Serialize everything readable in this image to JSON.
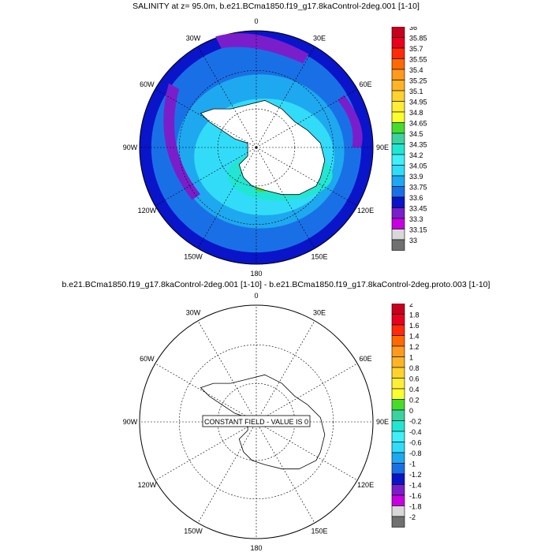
{
  "panels": [
    {
      "title": "SALINITY at z=  95.0m, b.e21.BCma1850.f19_g17.8kaControl-2deg.001 [1-10]",
      "lon_labels": [
        "0",
        "30E",
        "60E",
        "90E",
        "120E",
        "150E",
        "180",
        "150W",
        "120W",
        "90W",
        "60W",
        "30W"
      ],
      "colorbar": {
        "labels": [
          "36",
          "35.85",
          "35.7",
          "35.55",
          "35.4",
          "35.25",
          "35.1",
          "34.95",
          "34.8",
          "34.65",
          "34.5",
          "34.35",
          "34.2",
          "34.05",
          "33.9",
          "33.75",
          "33.6",
          "33.45",
          "33.3",
          "33.15",
          "33"
        ],
        "colors": [
          "#c8001e",
          "#e8001e",
          "#ff2a0a",
          "#ff6a00",
          "#ff9a1e",
          "#ffb428",
          "#ffd22d",
          "#ffee38",
          "#fbff2e",
          "#46dc2e",
          "#3cd2a0",
          "#22e6d2",
          "#40f0f8",
          "#32dcf8",
          "#1ea8f0",
          "#1970e6",
          "#0a14c8",
          "#7a1ecc",
          "#c800e0",
          "#d8d8d8",
          "#707070"
        ]
      },
      "annotation": ""
    },
    {
      "title": "b.e21.BCma1850.f19_g17.8kaControl-2deg.001 [1-10] - b.e21.BCma1850.f19_g17.8kaControl-2deg.proto.003 [1-10]",
      "lon_labels": [
        "0",
        "30E",
        "60E",
        "90E",
        "120E",
        "150E",
        "180",
        "150W",
        "120W",
        "90W",
        "60W",
        "30W"
      ],
      "colorbar": {
        "labels": [
          "2",
          "1.8",
          "1.6",
          "1.4",
          "1.2",
          "1",
          "0.8",
          "0.6",
          "0.4",
          "0.2",
          "0",
          "-0.2",
          "-0.4",
          "-0.6",
          "-0.8",
          "-1",
          "-1.2",
          "-1.4",
          "-1.6",
          "-1.8",
          "-2"
        ],
        "colors": [
          "#c8001e",
          "#e8001e",
          "#ff2a0a",
          "#ff6a00",
          "#ff9a1e",
          "#ffb428",
          "#ffd22d",
          "#ffee38",
          "#fbff2e",
          "#46dc2e",
          "#3cd2a0",
          "#22e6d2",
          "#40f0f8",
          "#32dcf8",
          "#1ea8f0",
          "#1970e6",
          "#0a14c8",
          "#7a1ecc",
          "#c800e0",
          "#d8d8d8",
          "#707070"
        ]
      },
      "annotation": "CONSTANT FIELD - VALUE IS 0"
    }
  ]
}
